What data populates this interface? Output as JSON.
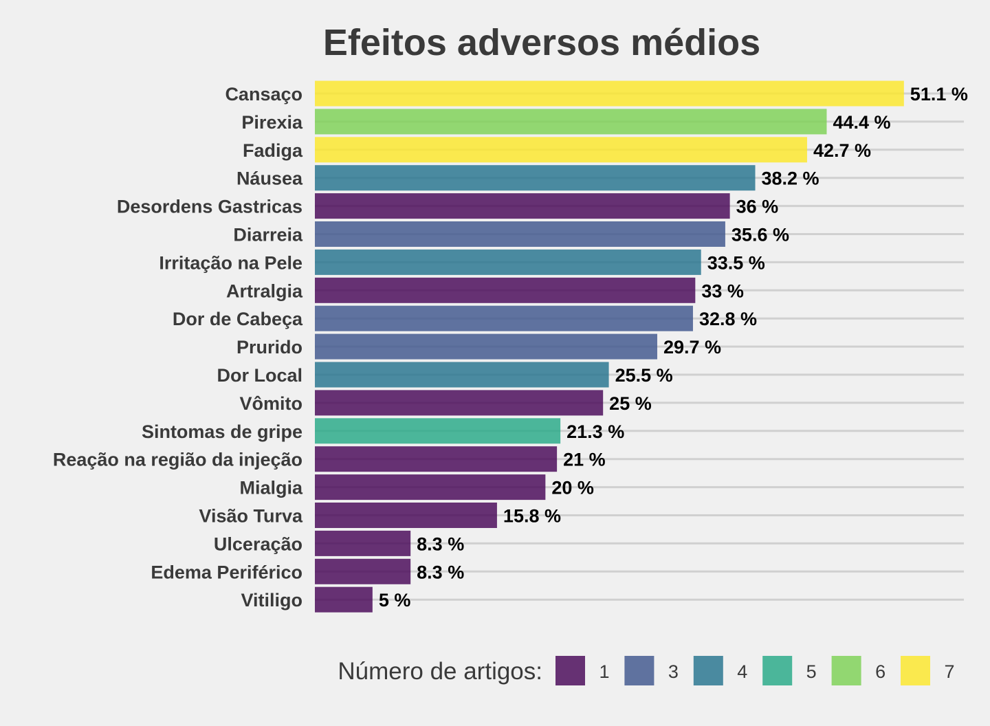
{
  "chart_data": {
    "type": "bar",
    "orientation": "horizontal",
    "title": "Efeitos adversos médios",
    "xlabel": "",
    "ylabel": "",
    "value_suffix": " %",
    "xlim": [
      0,
      56.3
    ],
    "grid": "horizontal-at-categories",
    "legend_placement": "bottom",
    "legend_title": "Número de artigos:",
    "legend": [
      {
        "label": "1",
        "color": "#440154"
      },
      {
        "label": "3",
        "color": "#3b528b"
      },
      {
        "label": "4",
        "color": "#21718c"
      },
      {
        "label": "5",
        "color": "#22a884"
      },
      {
        "label": "6",
        "color": "#7ad151"
      },
      {
        "label": "7",
        "color": "#fde725"
      }
    ],
    "bar_opacity": 0.8,
    "categories": [
      "Cansaço",
      "Pirexia",
      "Fadiga",
      "Náusea",
      "Desordens Gastricas",
      "Diarreia",
      "Irritação na Pele",
      "Artralgia",
      "Dor de Cabeça",
      "Prurido",
      "Dor Local",
      "Vômito",
      "Sintomas de gripe",
      "Reação na região da injeção",
      "Mialgia",
      "Visão Turva",
      "Ulceração",
      "Edema Periférico",
      "Vitiligo"
    ],
    "values": [
      51.1,
      44.4,
      42.7,
      38.2,
      36,
      35.6,
      33.5,
      33,
      32.8,
      29.7,
      25.5,
      25,
      21.3,
      21,
      20,
      15.8,
      8.3,
      8.3,
      5
    ],
    "articles": [
      "7",
      "6",
      "7",
      "4",
      "1",
      "3",
      "4",
      "1",
      "3",
      "3",
      "4",
      "1",
      "5",
      "1",
      "1",
      "1",
      "1",
      "1",
      "1"
    ]
  }
}
